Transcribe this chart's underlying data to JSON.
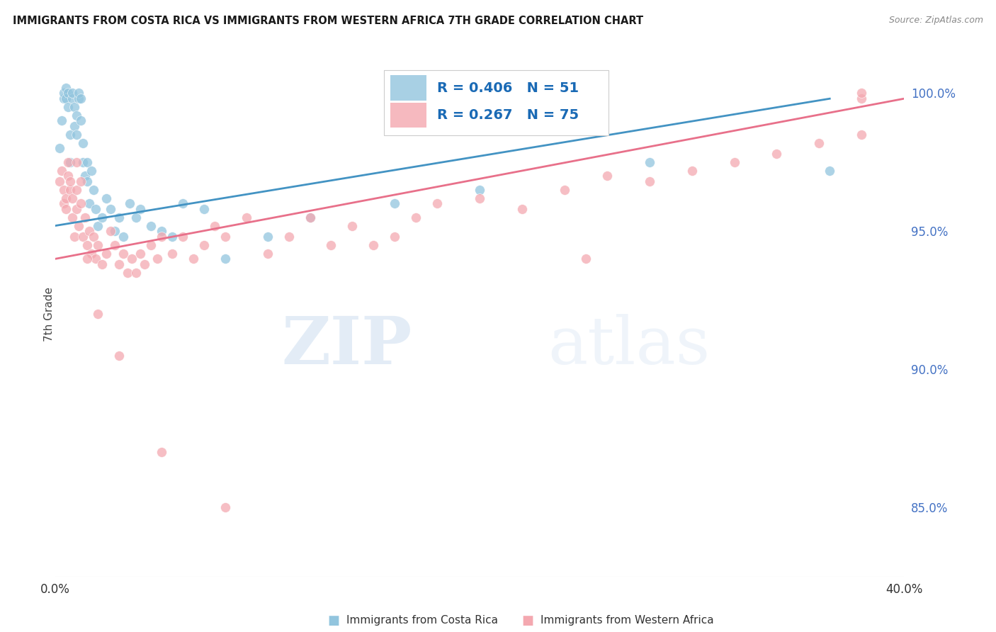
{
  "title": "IMMIGRANTS FROM COSTA RICA VS IMMIGRANTS FROM WESTERN AFRICA 7TH GRADE CORRELATION CHART",
  "source": "Source: ZipAtlas.com",
  "ylabel": "7th Grade",
  "right_yticks": [
    "85.0%",
    "90.0%",
    "95.0%",
    "100.0%"
  ],
  "right_ytick_vals": [
    0.85,
    0.9,
    0.95,
    1.0
  ],
  "xlim": [
    0.0,
    0.4
  ],
  "ylim": [
    0.825,
    1.015
  ],
  "legend_blue_R": "0.406",
  "legend_blue_N": "51",
  "legend_pink_R": "0.267",
  "legend_pink_N": "75",
  "watermark_zip": "ZIP",
  "watermark_atlas": "atlas",
  "blue_color": "#92c5de",
  "pink_color": "#f4a8b0",
  "trend_blue": "#4393c3",
  "trend_pink": "#e8708a",
  "blue_trend_x0": 0.0,
  "blue_trend_y0": 0.952,
  "blue_trend_x1": 0.365,
  "blue_trend_y1": 0.998,
  "pink_trend_x0": 0.0,
  "pink_trend_y0": 0.94,
  "pink_trend_x1": 0.4,
  "pink_trend_y1": 0.998,
  "blue_scatter_x": [
    0.002,
    0.003,
    0.004,
    0.004,
    0.005,
    0.005,
    0.006,
    0.006,
    0.007,
    0.007,
    0.008,
    0.008,
    0.009,
    0.009,
    0.01,
    0.01,
    0.011,
    0.011,
    0.012,
    0.012,
    0.013,
    0.013,
    0.014,
    0.015,
    0.015,
    0.016,
    0.017,
    0.018,
    0.019,
    0.02,
    0.022,
    0.024,
    0.026,
    0.028,
    0.03,
    0.032,
    0.035,
    0.038,
    0.04,
    0.045,
    0.05,
    0.055,
    0.06,
    0.07,
    0.08,
    0.1,
    0.12,
    0.16,
    0.2,
    0.28,
    0.365
  ],
  "blue_scatter_y": [
    0.98,
    0.99,
    0.998,
    1.0,
    0.998,
    1.002,
    0.995,
    1.0,
    0.975,
    0.985,
    0.998,
    1.0,
    0.988,
    0.995,
    0.985,
    0.992,
    0.998,
    1.0,
    0.99,
    0.998,
    0.975,
    0.982,
    0.97,
    0.975,
    0.968,
    0.96,
    0.972,
    0.965,
    0.958,
    0.952,
    0.955,
    0.962,
    0.958,
    0.95,
    0.955,
    0.948,
    0.96,
    0.955,
    0.958,
    0.952,
    0.95,
    0.948,
    0.96,
    0.958,
    0.94,
    0.948,
    0.955,
    0.96,
    0.965,
    0.975,
    0.972
  ],
  "pink_scatter_x": [
    0.002,
    0.003,
    0.004,
    0.004,
    0.005,
    0.005,
    0.006,
    0.006,
    0.007,
    0.007,
    0.008,
    0.008,
    0.009,
    0.01,
    0.01,
    0.011,
    0.012,
    0.012,
    0.013,
    0.014,
    0.015,
    0.016,
    0.017,
    0.018,
    0.019,
    0.02,
    0.022,
    0.024,
    0.026,
    0.028,
    0.03,
    0.032,
    0.034,
    0.036,
    0.038,
    0.04,
    0.042,
    0.045,
    0.048,
    0.05,
    0.055,
    0.06,
    0.065,
    0.07,
    0.075,
    0.08,
    0.09,
    0.1,
    0.11,
    0.12,
    0.13,
    0.14,
    0.15,
    0.16,
    0.17,
    0.18,
    0.2,
    0.22,
    0.24,
    0.26,
    0.28,
    0.3,
    0.32,
    0.34,
    0.36,
    0.38,
    0.01,
    0.015,
    0.02,
    0.03,
    0.05,
    0.08,
    0.25,
    0.38,
    0.38
  ],
  "pink_scatter_y": [
    0.968,
    0.972,
    0.96,
    0.965,
    0.958,
    0.962,
    0.97,
    0.975,
    0.965,
    0.968,
    0.955,
    0.962,
    0.948,
    0.958,
    0.965,
    0.952,
    0.96,
    0.968,
    0.948,
    0.955,
    0.945,
    0.95,
    0.942,
    0.948,
    0.94,
    0.945,
    0.938,
    0.942,
    0.95,
    0.945,
    0.938,
    0.942,
    0.935,
    0.94,
    0.935,
    0.942,
    0.938,
    0.945,
    0.94,
    0.948,
    0.942,
    0.948,
    0.94,
    0.945,
    0.952,
    0.948,
    0.955,
    0.942,
    0.948,
    0.955,
    0.945,
    0.952,
    0.945,
    0.948,
    0.955,
    0.96,
    0.962,
    0.958,
    0.965,
    0.97,
    0.968,
    0.972,
    0.975,
    0.978,
    0.982,
    0.985,
    0.975,
    0.94,
    0.92,
    0.905,
    0.87,
    0.85,
    0.94,
    0.998,
    1.0
  ]
}
